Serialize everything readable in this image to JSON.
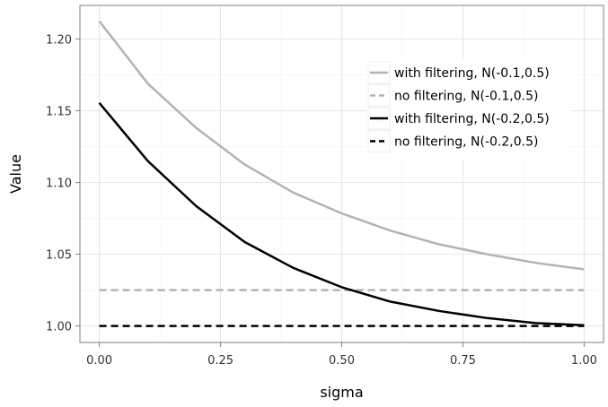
{
  "chart_data": {
    "type": "line",
    "xlabel": "sigma",
    "ylabel": "Value",
    "xlim": [
      -0.04,
      1.04
    ],
    "ylim": [
      0.9885,
      1.2235
    ],
    "xticks": [
      0.0,
      0.25,
      0.5,
      0.75,
      1.0
    ],
    "xtick_labels": [
      "0.00",
      "0.25",
      "0.50",
      "0.75",
      "1.00"
    ],
    "yticks": [
      1.0,
      1.05,
      1.1,
      1.15,
      1.2
    ],
    "ytick_labels": [
      "1.00",
      "1.05",
      "1.10",
      "1.15",
      "1.20"
    ],
    "grid": true,
    "legend_position": "top-right",
    "x": [
      0.0,
      0.1,
      0.2,
      0.3,
      0.4,
      0.5,
      0.6,
      0.7,
      0.8,
      0.9,
      1.0
    ],
    "series": [
      {
        "name": "with filtering, N(-0.1,0.5)",
        "color": "#b3b3b3",
        "dash": "solid",
        "values": [
          1.2125,
          1.169,
          1.138,
          1.1125,
          1.093,
          1.0785,
          1.0665,
          1.057,
          1.05,
          1.044,
          1.0395
        ]
      },
      {
        "name": "no filtering, N(-0.1,0.5)",
        "color": "#b3b3b3",
        "dash": "dashed",
        "values": [
          1.025,
          1.025,
          1.025,
          1.025,
          1.025,
          1.025,
          1.025,
          1.025,
          1.025,
          1.025,
          1.025
        ]
      },
      {
        "name": "with filtering, N(-0.2,0.5)",
        "color": "#000000",
        "dash": "solid",
        "values": [
          1.1555,
          1.115,
          1.0835,
          1.0585,
          1.0405,
          1.027,
          1.017,
          1.0105,
          1.0055,
          1.002,
          1.0005
        ]
      },
      {
        "name": "no filtering, N(-0.2,0.5)",
        "color": "#000000",
        "dash": "dashed",
        "values": [
          1.0,
          1.0,
          1.0,
          1.0,
          1.0,
          1.0,
          1.0,
          1.0,
          1.0,
          1.0,
          1.0
        ]
      }
    ]
  }
}
